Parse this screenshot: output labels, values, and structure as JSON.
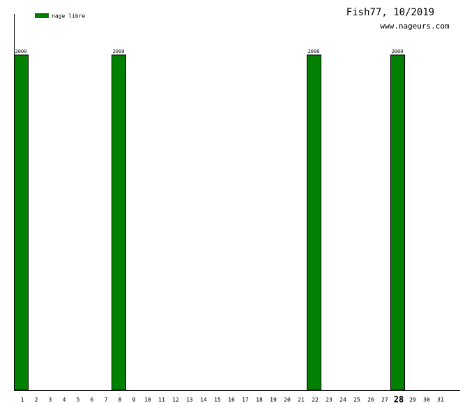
{
  "chart_data": {
    "type": "bar",
    "title": "Fish77, 10/2019",
    "subtitle": "www.nageurs.com",
    "categories": [
      "1",
      "2",
      "3",
      "4",
      "5",
      "6",
      "7",
      "8",
      "9",
      "10",
      "11",
      "12",
      "13",
      "14",
      "15",
      "16",
      "17",
      "18",
      "19",
      "20",
      "21",
      "22",
      "23",
      "24",
      "25",
      "26",
      "27",
      "28",
      "29",
      "30",
      "31"
    ],
    "series": [
      {
        "name": "nage libre",
        "color": "#008000",
        "values": [
          2000,
          null,
          null,
          null,
          null,
          null,
          null,
          2000,
          null,
          null,
          null,
          null,
          null,
          null,
          null,
          null,
          null,
          null,
          null,
          null,
          null,
          2000,
          null,
          null,
          null,
          null,
          null,
          2000,
          null,
          null,
          null
        ]
      }
    ],
    "ylim": [
      0,
      2245
    ],
    "highlight_index": 27,
    "legend": "top-left"
  }
}
